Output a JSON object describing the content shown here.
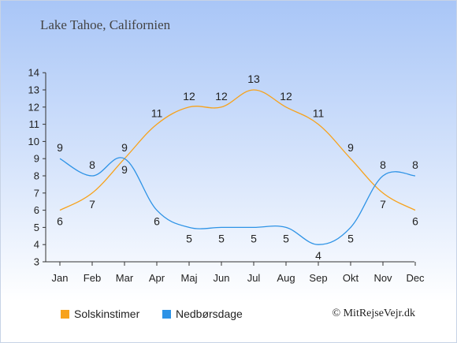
{
  "header": {
    "location": "Lake Tahoe, Californien"
  },
  "legend": {
    "sun_label": "Solskinstimer",
    "rain_label": "Nedbørsdage"
  },
  "footer": {
    "copyright": "© MitRejseVejr.dk"
  },
  "colors": {
    "sun": "#f7a21b",
    "rain": "#2e93e6",
    "axis": "#333333",
    "text": "#222222"
  },
  "chart_data": {
    "type": "line",
    "title": "Lake Tahoe, Californien",
    "categories": [
      "Jan",
      "Feb",
      "Mar",
      "Apr",
      "Maj",
      "Jun",
      "Jul",
      "Aug",
      "Sep",
      "Okt",
      "Nov",
      "Dec"
    ],
    "series": [
      {
        "name": "Solskinstimer",
        "color": "#f7a21b",
        "values": [
          6,
          7,
          9,
          11,
          12,
          12,
          13,
          12,
          11,
          9,
          7,
          6
        ]
      },
      {
        "name": "Nedbørsdage",
        "color": "#2e93e6",
        "values": [
          9,
          8,
          9,
          6,
          5,
          5,
          5,
          5,
          4,
          5,
          8,
          8
        ]
      }
    ],
    "ylim": [
      3,
      14
    ],
    "yticks": [
      3,
      4,
      5,
      6,
      7,
      8,
      9,
      10,
      11,
      12,
      13,
      14
    ],
    "grid": false,
    "legend_position": "bottom-left"
  }
}
